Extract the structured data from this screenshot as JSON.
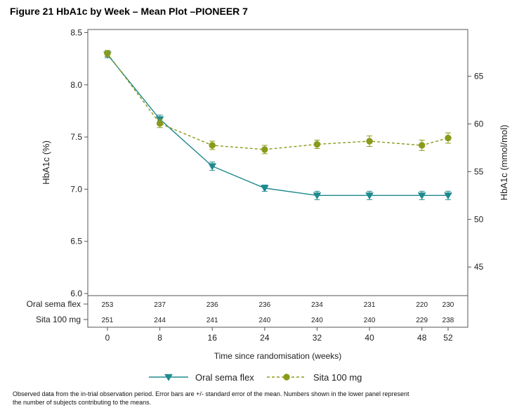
{
  "figure": {
    "title": "Figure 21 HbA1c by Week – Mean Plot –PIONEER 7",
    "footnote_line1": "Observed data from the in-trial observation period. Error bars are +/- standard error of the mean. Numbers shown in the lower panel represent",
    "footnote_line2": "the number of subjects contributing to the means."
  },
  "chart_data": {
    "type": "line",
    "title": "",
    "xlabel": "Time since randomisation (weeks)",
    "ylabel": "HbA1c (%)",
    "y2label": "HbA1c (mmol/mol)",
    "x": [
      0,
      8,
      16,
      24,
      32,
      40,
      48,
      52
    ],
    "xticks": [
      "0",
      "8",
      "16",
      "24",
      "32",
      "40",
      "48",
      "52"
    ],
    "xlim": [
      -3,
      55
    ],
    "ylim": [
      5.98,
      8.53
    ],
    "yticks": [
      "6.0",
      "6.5",
      "7.0",
      "7.5",
      "8.0",
      "8.5"
    ],
    "y2lim": [
      42.0,
      69.9
    ],
    "y2ticks": [
      "45",
      "50",
      "55",
      "60",
      "65"
    ],
    "grid": false,
    "legend_position": "bottom",
    "series": [
      {
        "name": "Oral sema flex",
        "color": "#1f8a8e",
        "line_style": "solid",
        "marker": "triangle-down",
        "values": [
          8.29,
          7.67,
          7.22,
          7.01,
          6.94,
          6.94,
          6.94,
          6.94
        ],
        "se": [
          0.03,
          0.04,
          0.04,
          0.03,
          0.04,
          0.04,
          0.04,
          0.04
        ]
      },
      {
        "name": "Sita 100 mg",
        "color": "#8a9a1a",
        "line_style": "dashed",
        "marker": "circle",
        "values": [
          8.3,
          7.63,
          7.42,
          7.38,
          7.43,
          7.46,
          7.42,
          7.49
        ],
        "se": [
          0.03,
          0.04,
          0.04,
          0.04,
          0.04,
          0.05,
          0.05,
          0.05
        ]
      }
    ],
    "subjects_table": [
      {
        "label": "Oral sema flex",
        "counts": [
          "253",
          "237",
          "236",
          "236",
          "234",
          "231",
          "220",
          "230"
        ]
      },
      {
        "label": "Sita 100 mg",
        "counts": [
          "251",
          "244",
          "241",
          "240",
          "240",
          "240",
          "229",
          "238"
        ]
      }
    ]
  }
}
